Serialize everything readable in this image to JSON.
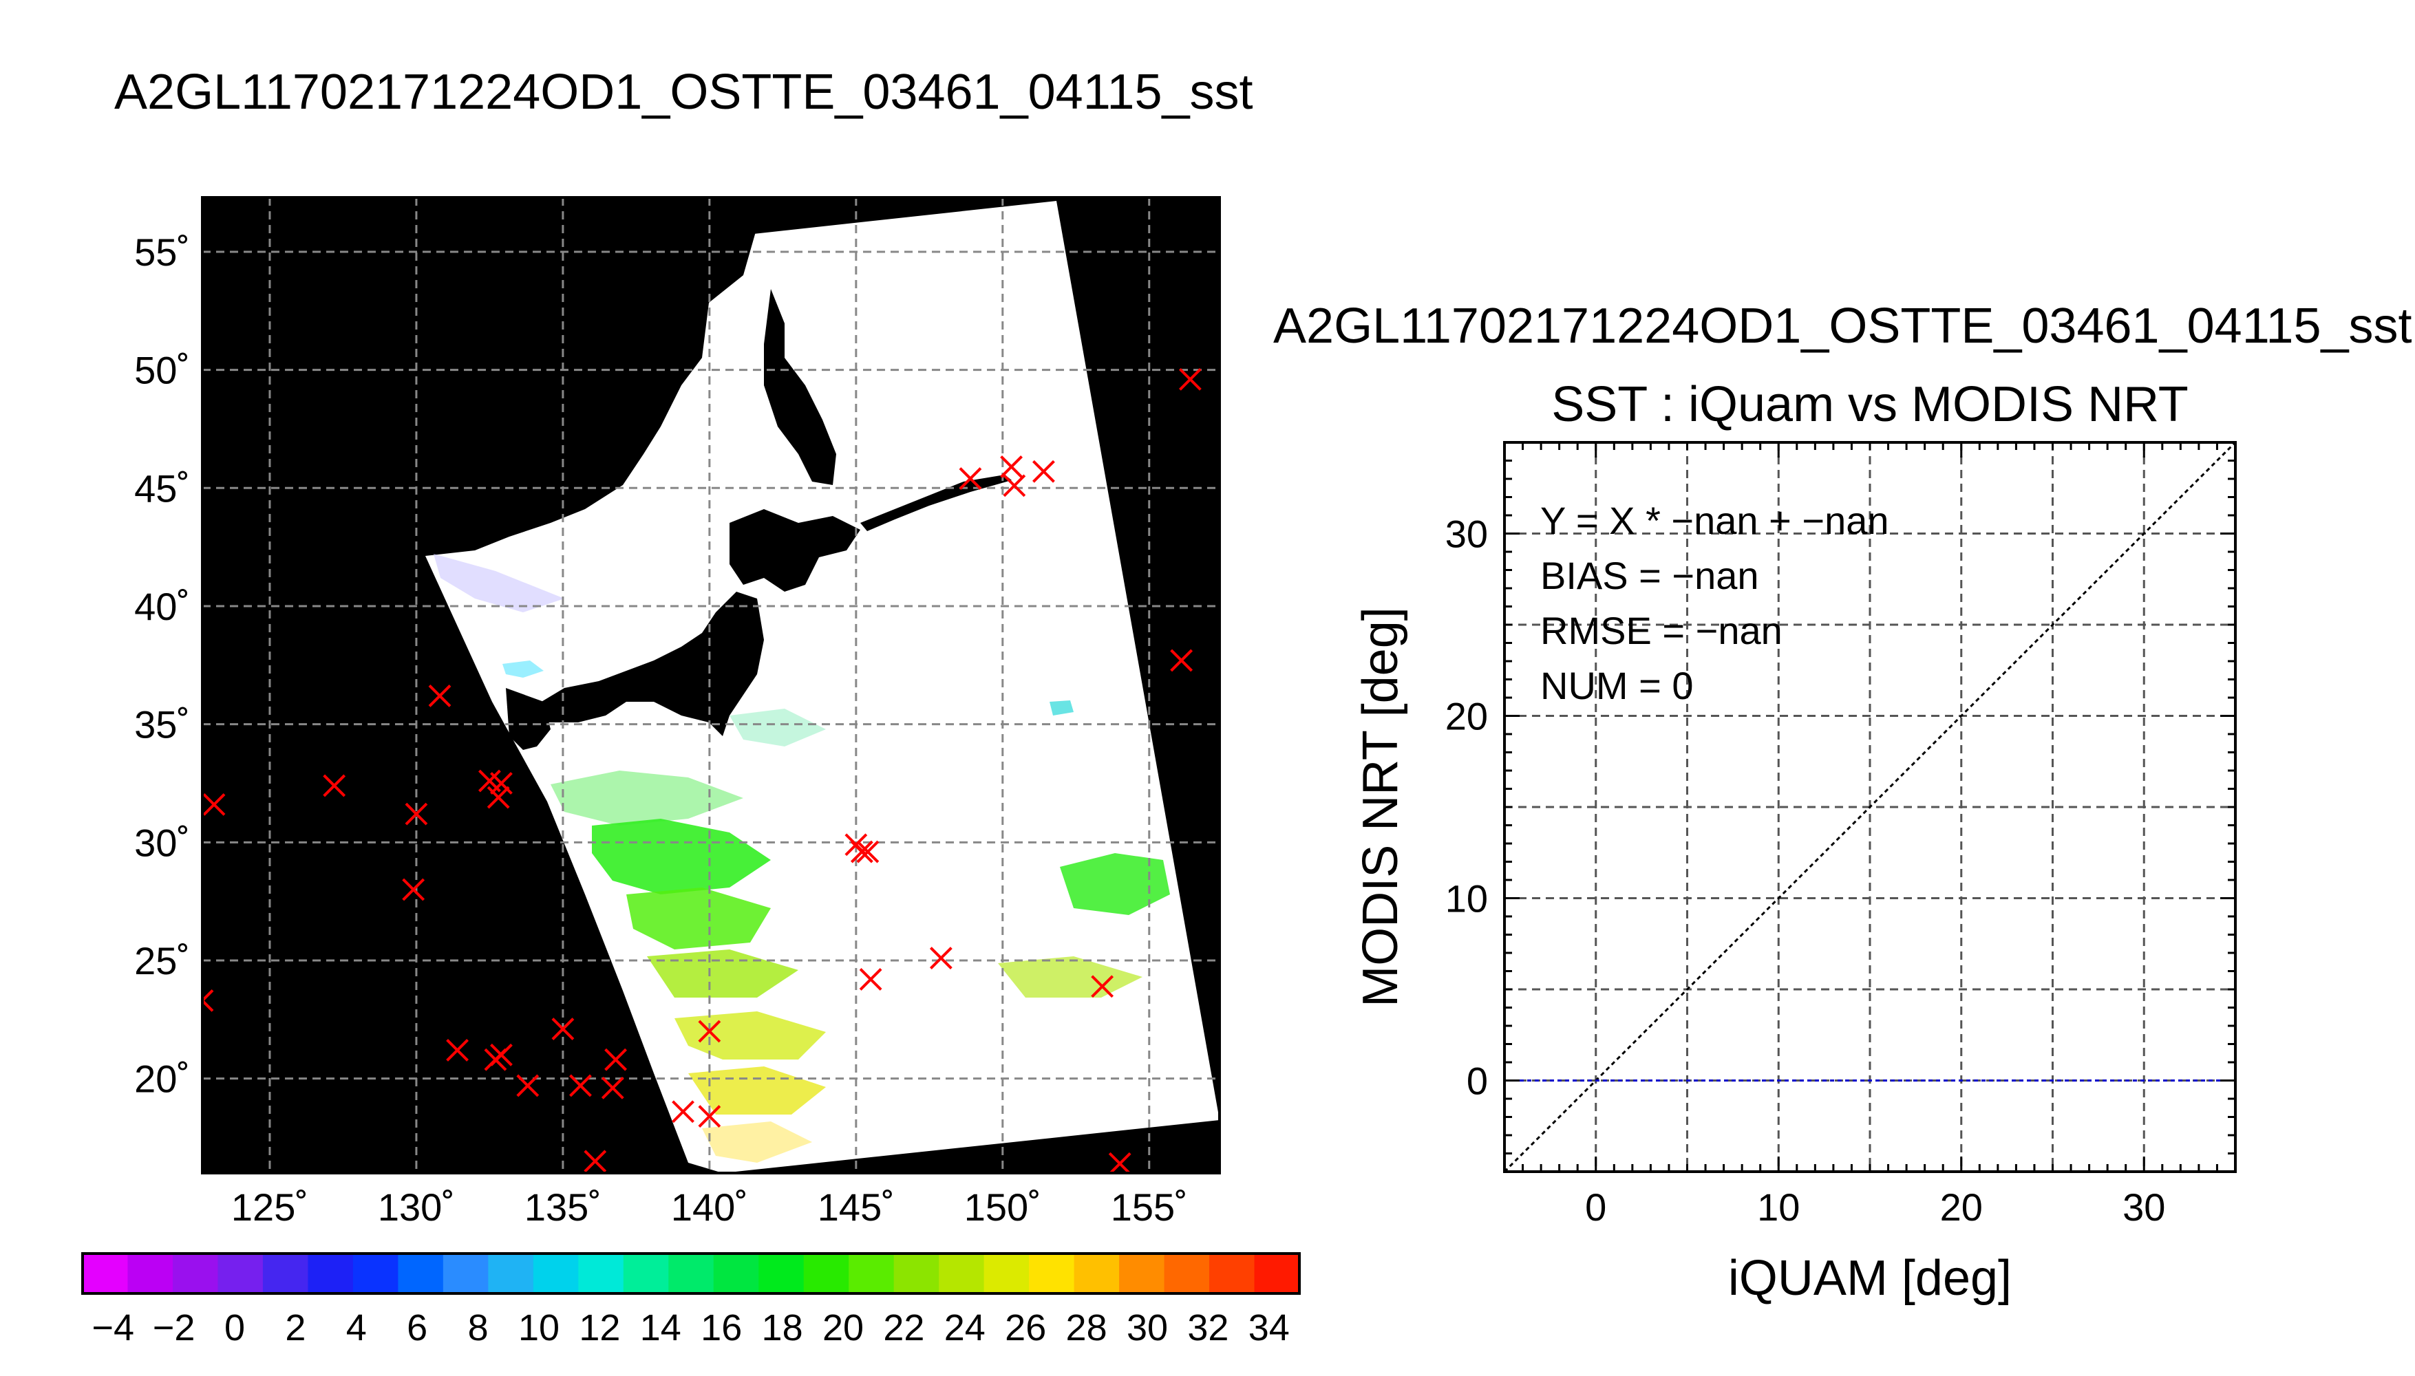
{
  "chart_data": [
    {
      "type": "map",
      "title": "A2GL11702171224OD1_OSTTE_03461_04115_sst",
      "x_ticks": [
        "125˚",
        "130˚",
        "135˚",
        "140˚",
        "145˚",
        "150˚",
        "155˚"
      ],
      "y_ticks": [
        "20˚",
        "25˚",
        "30˚",
        "35˚",
        "40˚",
        "45˚",
        "50˚",
        "55˚"
      ],
      "lon_range": [
        122.7,
        157.4
      ],
      "lat_range": [
        16.0,
        57.3
      ],
      "grid": true,
      "background_color": "#000000",
      "marker_color": "#ff0000",
      "markers": [
        {
          "lon": 123.1,
          "lat": 31.6
        },
        {
          "lon": 127.2,
          "lat": 32.4
        },
        {
          "lon": 130.0,
          "lat": 31.2
        },
        {
          "lon": 130.8,
          "lat": 36.2
        },
        {
          "lon": 129.9,
          "lat": 28.0
        },
        {
          "lon": 132.5,
          "lat": 32.6
        },
        {
          "lon": 132.9,
          "lat": 32.5
        },
        {
          "lon": 132.8,
          "lat": 31.9
        },
        {
          "lon": 131.4,
          "lat": 21.2
        },
        {
          "lon": 132.7,
          "lat": 20.8
        },
        {
          "lon": 132.9,
          "lat": 21.0
        },
        {
          "lon": 133.8,
          "lat": 19.7
        },
        {
          "lon": 135.0,
          "lat": 22.1
        },
        {
          "lon": 135.6,
          "lat": 19.7
        },
        {
          "lon": 136.8,
          "lat": 20.8
        },
        {
          "lon": 136.7,
          "lat": 19.6
        },
        {
          "lon": 136.1,
          "lat": 16.5
        },
        {
          "lon": 139.1,
          "lat": 18.6
        },
        {
          "lon": 140.0,
          "lat": 22.0
        },
        {
          "lon": 140.0,
          "lat": 18.4
        },
        {
          "lon": 145.0,
          "lat": 29.9
        },
        {
          "lon": 145.2,
          "lat": 29.6
        },
        {
          "lon": 145.4,
          "lat": 29.6
        },
        {
          "lon": 145.5,
          "lat": 24.2
        },
        {
          "lon": 147.9,
          "lat": 25.1
        },
        {
          "lon": 148.9,
          "lat": 45.4
        },
        {
          "lon": 150.3,
          "lat": 45.9
        },
        {
          "lon": 150.4,
          "lat": 45.1
        },
        {
          "lon": 151.4,
          "lat": 45.7
        },
        {
          "lon": 153.4,
          "lat": 23.9
        },
        {
          "lon": 156.1,
          "lat": 37.7
        },
        {
          "lon": 156.4,
          "lat": 49.6
        },
        {
          "lon": 154.0,
          "lat": 16.4
        },
        {
          "lon": 122.7,
          "lat": 23.3
        }
      ]
    },
    {
      "type": "scatter",
      "header": "A2GL11702171224OD1_OSTTE_03461_04115_sst",
      "title": "SST : iQuam vs MODIS NRT",
      "xlabel": "iQUAM [deg]",
      "ylabel": "MODIS NRT [deg]",
      "xlim": [
        -5,
        35
      ],
      "ylim": [
        -5,
        35
      ],
      "x_ticks": [
        "0",
        "10",
        "20",
        "30"
      ],
      "y_ticks": [
        "0",
        "10",
        "20",
        "30"
      ],
      "grid": true,
      "annotations": [
        "Y = X * −nan + −nan",
        "BIAS = −nan",
        "RMSE = −nan",
        "NUM = 0"
      ],
      "series": [
        {
          "style": "dotted",
          "color": "#000000",
          "x": [
            -5,
            35
          ],
          "y": [
            -5,
            35
          ]
        },
        {
          "style": "dotted",
          "color": "#0000cc",
          "x": [
            -5,
            35
          ],
          "y": [
            0,
            0
          ]
        }
      ],
      "points": []
    },
    {
      "type": "colorbar",
      "tick_labels": [
        "−4",
        "−2",
        "0",
        "2",
        "4",
        "6",
        "8",
        "10",
        "12",
        "14",
        "16",
        "18",
        "20",
        "22",
        "24",
        "26",
        "28",
        "30",
        "32",
        "34"
      ],
      "range": [
        -5,
        35
      ],
      "colors": [
        "#e400ff",
        "#bb00f4",
        "#9a10ee",
        "#7620ee",
        "#4526f0",
        "#1d21f6",
        "#0a33ff",
        "#0066ff",
        "#2a8cff",
        "#1fb3f4",
        "#00d2ec",
        "#00e9d8",
        "#00ee99",
        "#00ea6a",
        "#00e640",
        "#00ea1c",
        "#28ea00",
        "#5aec00",
        "#8ce400",
        "#b5e600",
        "#dcea00",
        "#ffe200",
        "#ffc000",
        "#ff8c00",
        "#ff6800",
        "#ff4000",
        "#ff1a00"
      ]
    }
  ]
}
